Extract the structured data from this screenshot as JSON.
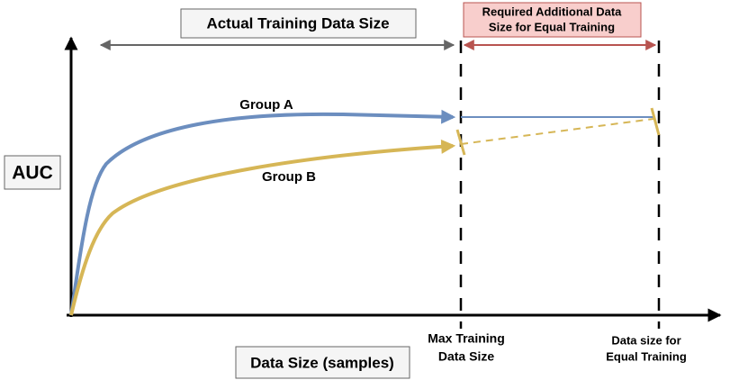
{
  "header": {
    "actual_size_label": "Actual Training Data Size",
    "required_size_label": [
      "Required Additional Data",
      "Size for Equal Training"
    ]
  },
  "axes": {
    "y_label": "AUC",
    "x_label": "Data Size (samples)"
  },
  "curves": {
    "group_a": "Group A",
    "group_b": "Group B"
  },
  "markers": {
    "max_training": [
      "Max Training",
      "Data Size"
    ],
    "equal_training": [
      "Data size for",
      "Equal Training"
    ]
  }
}
